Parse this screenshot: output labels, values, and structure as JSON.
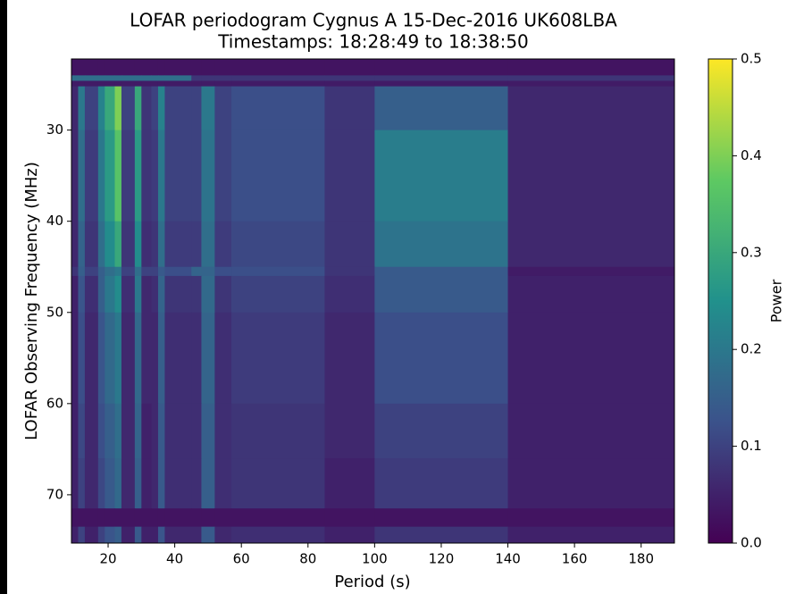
{
  "chart_data": {
    "type": "heatmap",
    "title": "LOFAR periodogram Cygnus A 15-Dec-2016 UK608LBA",
    "subtitle": "Timestamps: 18:28:49 to 18:38:50",
    "x_label": "Period (s)",
    "y_label": "LOFAR Observing Frequency (MHz)",
    "colorbar_label": "Power",
    "colormap": "viridis",
    "x_edges": [
      9,
      11,
      13,
      17,
      19,
      22,
      24,
      28,
      30,
      33,
      35,
      37,
      45,
      48,
      52,
      57,
      85,
      100,
      140,
      190
    ],
    "y_edges": [
      22.2,
      24,
      24.6,
      25.2,
      30,
      40,
      45,
      46,
      50,
      60,
      66,
      71.5,
      73.5,
      75.3
    ],
    "z": [
      [
        0.03,
        0.03,
        0.03,
        0.03,
        0.03,
        0.03,
        0.03,
        0.03,
        0.03,
        0.03,
        0.03,
        0.03,
        0.03,
        0.03,
        0.03,
        0.03,
        0.03,
        0.03,
        0.03
      ],
      [
        0.18,
        0.18,
        0.18,
        0.18,
        0.18,
        0.18,
        0.18,
        0.18,
        0.18,
        0.18,
        0.18,
        0.18,
        0.08,
        0.08,
        0.08,
        0.08,
        0.08,
        0.08,
        0.08
      ],
      [
        0.04,
        0.04,
        0.04,
        0.04,
        0.04,
        0.04,
        0.04,
        0.04,
        0.04,
        0.04,
        0.04,
        0.04,
        0.04,
        0.04,
        0.04,
        0.04,
        0.04,
        0.04,
        0.04
      ],
      [
        0.06,
        0.2,
        0.1,
        0.22,
        0.3,
        0.4,
        0.1,
        0.3,
        0.08,
        0.1,
        0.22,
        0.1,
        0.1,
        0.2,
        0.1,
        0.12,
        0.08,
        0.15,
        0.06
      ],
      [
        0.06,
        0.18,
        0.09,
        0.2,
        0.27,
        0.36,
        0.09,
        0.27,
        0.08,
        0.09,
        0.2,
        0.1,
        0.1,
        0.19,
        0.1,
        0.12,
        0.08,
        0.21,
        0.06
      ],
      [
        0.06,
        0.16,
        0.08,
        0.18,
        0.24,
        0.3,
        0.08,
        0.24,
        0.07,
        0.08,
        0.18,
        0.09,
        0.09,
        0.18,
        0.09,
        0.11,
        0.08,
        0.19,
        0.06
      ],
      [
        0.08,
        0.15,
        0.1,
        0.15,
        0.18,
        0.2,
        0.1,
        0.18,
        0.1,
        0.1,
        0.14,
        0.12,
        0.16,
        0.16,
        0.12,
        0.12,
        0.08,
        0.14,
        0.04
      ],
      [
        0.05,
        0.13,
        0.07,
        0.15,
        0.2,
        0.24,
        0.07,
        0.2,
        0.06,
        0.07,
        0.16,
        0.08,
        0.08,
        0.17,
        0.08,
        0.1,
        0.07,
        0.14,
        0.05
      ],
      [
        0.05,
        0.12,
        0.06,
        0.13,
        0.17,
        0.2,
        0.06,
        0.17,
        0.06,
        0.06,
        0.15,
        0.07,
        0.07,
        0.16,
        0.07,
        0.09,
        0.06,
        0.12,
        0.05
      ],
      [
        0.05,
        0.11,
        0.06,
        0.12,
        0.15,
        0.18,
        0.06,
        0.16,
        0.05,
        0.06,
        0.14,
        0.07,
        0.07,
        0.15,
        0.07,
        0.08,
        0.06,
        0.1,
        0.05
      ],
      [
        0.05,
        0.1,
        0.06,
        0.11,
        0.14,
        0.17,
        0.06,
        0.15,
        0.05,
        0.06,
        0.14,
        0.07,
        0.07,
        0.15,
        0.07,
        0.08,
        0.05,
        0.09,
        0.05
      ],
      [
        0.03,
        0.03,
        0.03,
        0.03,
        0.03,
        0.03,
        0.03,
        0.03,
        0.03,
        0.03,
        0.03,
        0.03,
        0.03,
        0.03,
        0.03,
        0.03,
        0.03,
        0.03,
        0.03
      ],
      [
        0.05,
        0.1,
        0.05,
        0.1,
        0.13,
        0.15,
        0.05,
        0.14,
        0.05,
        0.05,
        0.13,
        0.06,
        0.06,
        0.14,
        0.06,
        0.07,
        0.05,
        0.08,
        0.05
      ]
    ],
    "xlim": [
      9,
      190
    ],
    "ylim": [
      75.3,
      22.2
    ],
    "xticks": [
      20,
      40,
      60,
      80,
      100,
      120,
      140,
      160,
      180
    ],
    "yticks": [
      30,
      40,
      50,
      60,
      70
    ],
    "clim": [
      0,
      0.5
    ],
    "cticks": [
      {
        "value": 0,
        "label": "0.0"
      },
      0.1,
      0.2,
      0.3,
      0.4,
      0.5
    ]
  }
}
